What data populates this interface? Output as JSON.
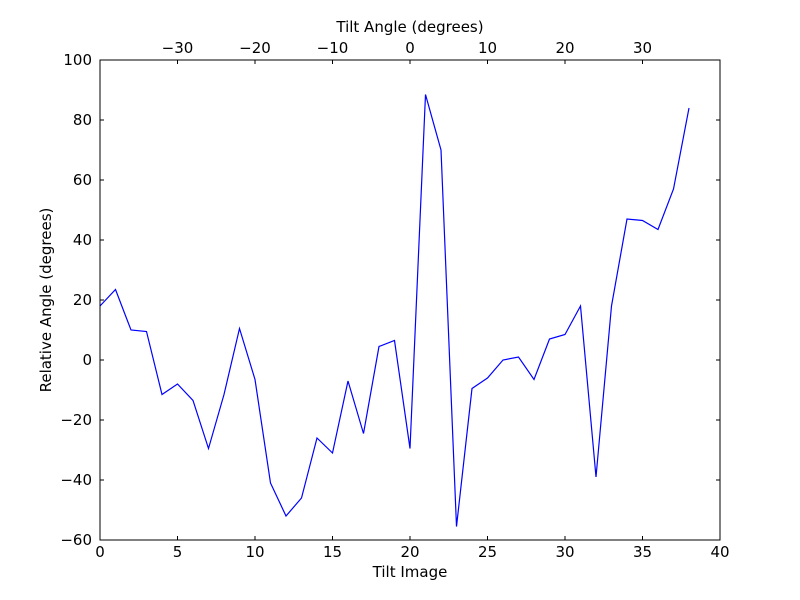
{
  "chart_data": {
    "type": "line",
    "xlabel": "Tilt Image",
    "ylabel": "Relative Angle (degrees)",
    "x2label": "Tilt Angle (degrees)",
    "xlim": [
      0,
      40
    ],
    "ylim": [
      -60,
      100
    ],
    "xticks": [
      "0",
      "5",
      "10",
      "15",
      "20",
      "25",
      "30",
      "35",
      "40"
    ],
    "yticks": [
      "100",
      "80",
      "60",
      "40",
      "20",
      "0",
      "−20",
      "−40",
      "−60"
    ],
    "x2ticks": [
      {
        "value": -30,
        "label": "−30"
      },
      {
        "value": -20,
        "label": "−20"
      },
      {
        "value": -10,
        "label": "−10"
      },
      {
        "value": 0,
        "label": "0"
      },
      {
        "value": 10,
        "label": "10"
      },
      {
        "value": 20,
        "label": "20"
      },
      {
        "value": 30,
        "label": "30"
      }
    ],
    "x2_mapping": {
      "tilt_image_at_zero_angle": 20,
      "degrees_per_image": 2
    },
    "line_color": "#0000ff",
    "grid": false,
    "x": [
      0,
      1,
      2,
      3,
      4,
      5,
      6,
      7,
      8,
      9,
      10,
      11,
      12,
      13,
      14,
      15,
      16,
      17,
      18,
      19,
      20,
      21,
      22,
      23,
      24,
      25,
      26,
      27,
      28,
      29,
      30,
      31,
      32,
      33,
      34,
      35,
      36,
      37,
      38
    ],
    "y": [
      18,
      23.5,
      10,
      9.5,
      -11.5,
      -8,
      -13.5,
      -29.5,
      -11.5,
      10.5,
      -6.5,
      -41,
      -52,
      -46,
      -26,
      -31,
      -7,
      -24.5,
      4.5,
      6.5,
      -29.5,
      88.5,
      70,
      -55.5,
      -9.5,
      -6,
      0,
      1,
      -6.5,
      7,
      8.5,
      18,
      -39,
      18,
      47,
      46.5,
      43.5,
      57,
      84
    ]
  }
}
